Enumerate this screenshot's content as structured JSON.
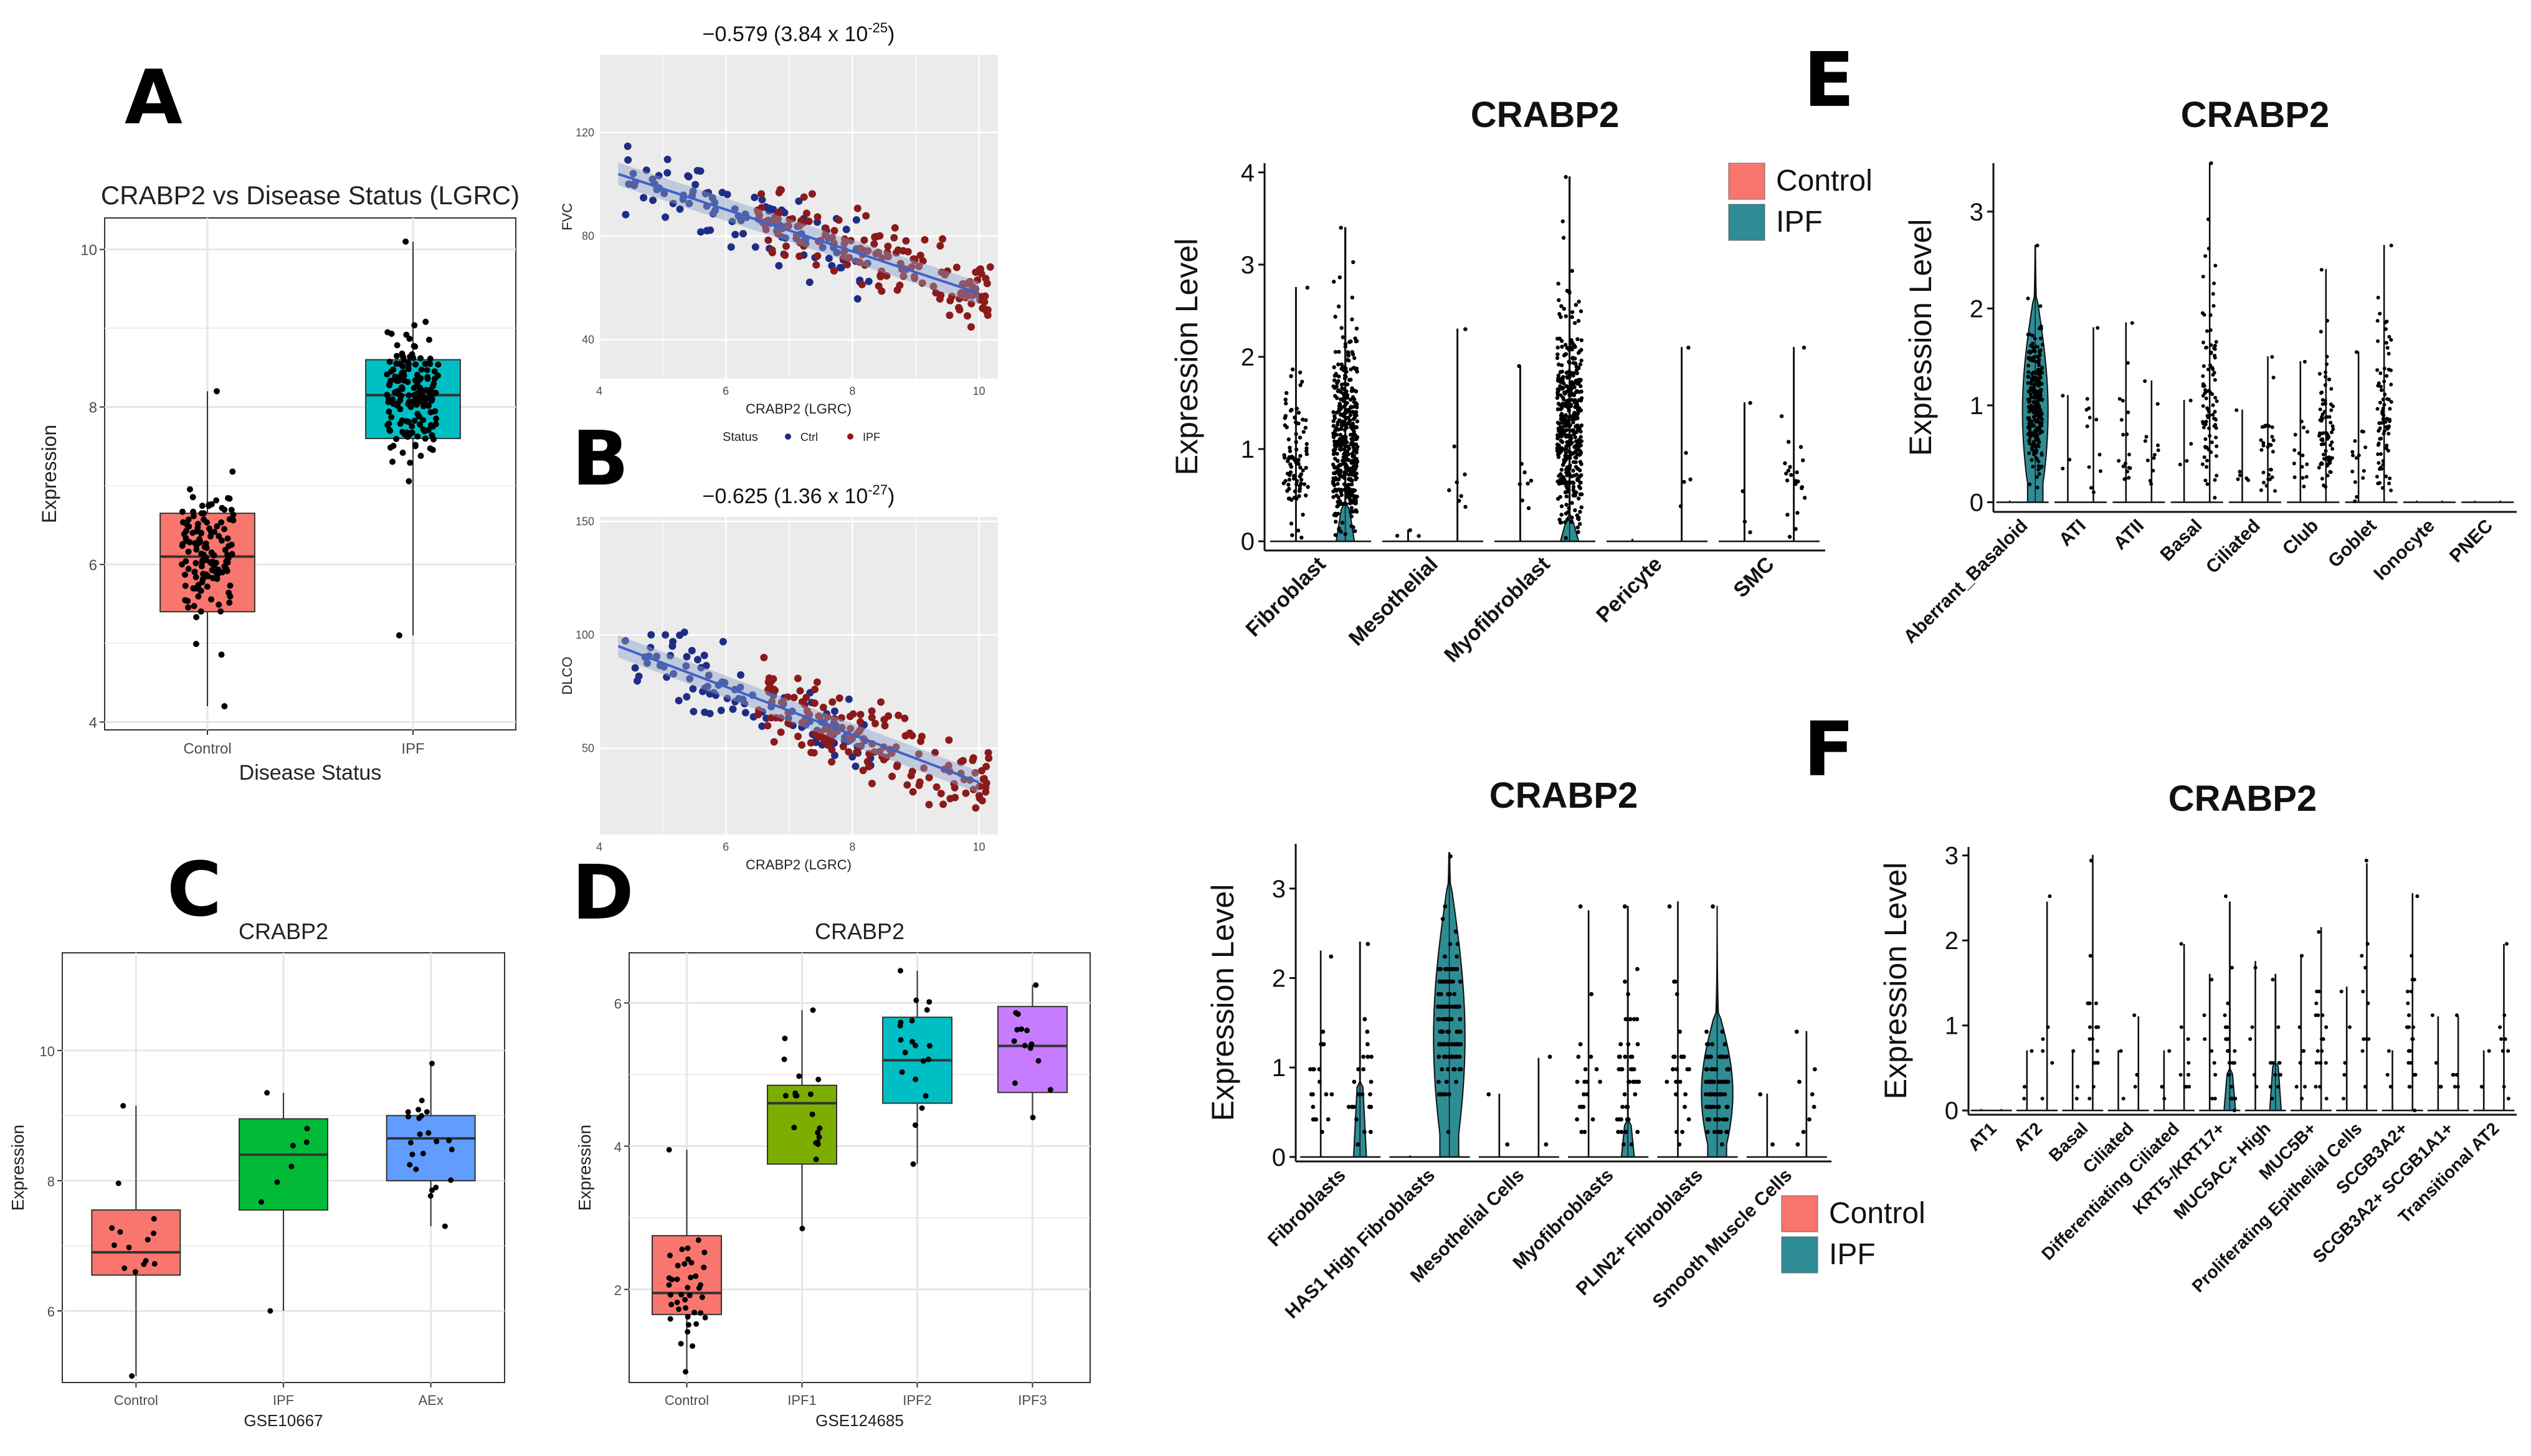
{
  "figure": {
    "panel_letters": [
      "A",
      "B",
      "C",
      "D",
      "E",
      "F"
    ]
  },
  "colors": {
    "control": "#F8766D",
    "ipf": "#00BFC4",
    "ipf_sc": "#2E8C95",
    "ctrl_point": "#1F2D86",
    "ipf_point": "#8B1A1A",
    "regression": "#3F63C8",
    "c_ipf": "#00BA38",
    "c_aex": "#619CFF",
    "d_ipf1": "#7CAE00",
    "d_ipf2": "#00BFC4",
    "d_ipf3": "#C77CFF"
  },
  "chart_data": [
    {
      "id": "A_box",
      "type": "box",
      "title": "CRABP2 vs Disease Status (LGRC)",
      "xlabel": "Disease Status",
      "ylabel": "Expression",
      "categories": [
        "Control",
        "IPF"
      ],
      "ylim": [
        3.9,
        10.4
      ],
      "yticks": [
        4,
        6,
        8,
        10
      ],
      "boxes": [
        {
          "q1": 5.4,
          "median": 6.1,
          "q3": 6.65,
          "whisker_low": 4.2,
          "whisker_high": 8.2,
          "n": 130
        },
        {
          "q1": 7.6,
          "median": 8.15,
          "q3": 8.6,
          "whisker_low": 5.1,
          "whisker_high": 10.1,
          "n": 160
        }
      ]
    },
    {
      "id": "A_scatter",
      "type": "scatter",
      "annotation": "−0.579 (3.84 x 10",
      "annotation_exp": "-25",
      "annotation_close": ")",
      "xlabel": "CRABP2 (LGRC)",
      "ylabel": "FVC",
      "xlim": [
        4,
        10.3
      ],
      "ylim": [
        25,
        150
      ],
      "xticks": [
        4,
        6,
        8,
        10
      ],
      "yticks": [
        40,
        80,
        120
      ],
      "trend": {
        "x0": 4.3,
        "y0": 104,
        "x1": 10.0,
        "y1": 58
      },
      "legend": {
        "title": "Status",
        "ctrl_label": "Ctrl",
        "ipf_label": "IPF"
      }
    },
    {
      "id": "B_scatter",
      "type": "scatter",
      "annotation": "−0.625 (1.36 x 10",
      "annotation_exp": "-27",
      "annotation_close": ")",
      "xlabel": "CRABP2 (LGRC)",
      "ylabel": "DLCO",
      "xlim": [
        4,
        10.3
      ],
      "ylim": [
        12,
        152
      ],
      "xticks": [
        4,
        6,
        8,
        10
      ],
      "yticks": [
        50,
        100,
        150
      ],
      "trend": {
        "x0": 4.3,
        "y0": 95,
        "x1": 10.0,
        "y1": 35
      }
    },
    {
      "id": "C_box",
      "type": "box",
      "title": "CRABP2",
      "xlabel": "GSE10667",
      "ylabel": "Expression",
      "categories": [
        "Control",
        "IPF",
        "AEx"
      ],
      "ylim": [
        4.9,
        11.5
      ],
      "yticks": [
        6,
        8,
        10
      ],
      "boxes": [
        {
          "q1": 6.55,
          "median": 6.9,
          "q3": 7.55,
          "whisker_low": 5.0,
          "whisker_high": 9.15,
          "n": 15
        },
        {
          "q1": 7.55,
          "median": 8.4,
          "q3": 8.95,
          "whisker_low": 6.0,
          "whisker_high": 9.35,
          "n": 8
        },
        {
          "q1": 8.0,
          "median": 8.65,
          "q3": 9.0,
          "whisker_low": 7.3,
          "whisker_high": 9.8,
          "n": 23
        }
      ]
    },
    {
      "id": "D_box",
      "type": "box",
      "title": "CRABP2",
      "xlabel": "GSE124685",
      "ylabel": "Expression",
      "categories": [
        "Control",
        "IPF1",
        "IPF2",
        "IPF3"
      ],
      "ylim": [
        0.7,
        6.7
      ],
      "yticks": [
        2,
        4,
        6
      ],
      "boxes": [
        {
          "q1": 1.65,
          "median": 1.95,
          "q3": 2.75,
          "whisker_low": 0.85,
          "whisker_high": 3.95,
          "n": 40
        },
        {
          "q1": 3.75,
          "median": 4.6,
          "q3": 4.85,
          "whisker_low": 2.85,
          "whisker_high": 5.9,
          "n": 20
        },
        {
          "q1": 4.6,
          "median": 5.2,
          "q3": 5.8,
          "whisker_low": 3.75,
          "whisker_high": 6.45,
          "n": 20
        },
        {
          "q1": 4.75,
          "median": 5.4,
          "q3": 5.95,
          "whisker_low": 4.4,
          "whisker_high": 6.25,
          "n": 14
        }
      ]
    },
    {
      "id": "E1_violin",
      "type": "violin",
      "title": "CRABP2",
      "ylabel": "Expression Level",
      "ylim": [
        -0.1,
        4.1
      ],
      "yticks": [
        0,
        1,
        2,
        3,
        4
      ],
      "categories": [
        "Fibroblast",
        "Mesothelial",
        "Myofibroblast",
        "Pericyte",
        "SMC"
      ],
      "groups": [
        {
          "control_max": 2.75,
          "ipf_max": 3.4,
          "control_n": 90,
          "ipf_n": 420,
          "ipf_blob": 0.35
        },
        {
          "control_max": 0.12,
          "ipf_max": 2.3,
          "control_n": 3,
          "ipf_n": 8,
          "ipf_blob": 0
        },
        {
          "control_max": 1.9,
          "ipf_max": 3.95,
          "control_n": 8,
          "ipf_n": 420,
          "ipf_blob": 0.2
        },
        {
          "control_max": 0.02,
          "ipf_max": 2.1,
          "control_n": 0,
          "ipf_n": 5,
          "ipf_blob": 0
        },
        {
          "control_max": 1.5,
          "ipf_max": 2.1,
          "control_n": 4,
          "ipf_n": 22,
          "ipf_blob": 0
        }
      ],
      "legend": [
        "Control",
        "IPF"
      ]
    },
    {
      "id": "E2_violin",
      "type": "violin",
      "title": "CRABP2",
      "ylabel": "Expression Level",
      "ylim": [
        -0.1,
        3.5
      ],
      "yticks": [
        0,
        1,
        2,
        3
      ],
      "categories": [
        "Aberrant_Basaloid",
        "ATI",
        "ATII",
        "Basal",
        "Ciliated",
        "Club",
        "Goblet",
        "Ionocyte",
        "PNEC"
      ],
      "groups": [
        {
          "control_max": 0,
          "ipf_max": 2.65,
          "control_n": 0,
          "ipf_n": 260,
          "ipf_blob": 2.1
        },
        {
          "control_max": 1.1,
          "ipf_max": 1.8,
          "control_n": 3,
          "ipf_n": 12,
          "ipf_blob": 0
        },
        {
          "control_max": 1.85,
          "ipf_max": 1.25,
          "control_n": 18,
          "ipf_n": 12,
          "ipf_blob": 0
        },
        {
          "control_max": 1.05,
          "ipf_max": 3.5,
          "control_n": 4,
          "ipf_n": 90,
          "ipf_blob": 0
        },
        {
          "control_max": 0.95,
          "ipf_max": 1.5,
          "control_n": 6,
          "ipf_n": 30,
          "ipf_blob": 0
        },
        {
          "control_max": 1.45,
          "ipf_max": 2.4,
          "control_n": 15,
          "ipf_n": 75,
          "ipf_blob": 0
        },
        {
          "control_max": 1.55,
          "ipf_max": 2.65,
          "control_n": 15,
          "ipf_n": 80,
          "ipf_blob": 0
        },
        {
          "control_max": 0,
          "ipf_max": 0,
          "control_n": 0,
          "ipf_n": 0,
          "ipf_blob": 0
        },
        {
          "control_max": 0,
          "ipf_max": 0,
          "control_n": 0,
          "ipf_n": 0,
          "ipf_blob": 0
        }
      ]
    },
    {
      "id": "F1_violin",
      "type": "violin",
      "title": "CRABP2",
      "ylabel": "Expression Level",
      "ylim": [
        -0.05,
        3.5
      ],
      "yticks": [
        0,
        1,
        2,
        3
      ],
      "categories": [
        "Fibroblasts",
        "HAS1 High Fibroblasts",
        "Mesothelial Cells",
        "Myofibroblasts",
        "PLIN2+ Fibroblasts",
        "Smooth Muscle Cells"
      ],
      "groups": [
        {
          "control_max": 2.3,
          "ipf_max": 2.4,
          "control_n": 20,
          "ipf_n": 25,
          "ipf_blob": 0.8
        },
        {
          "control_max": 0,
          "ipf_max": 3.4,
          "control_n": 0,
          "ipf_n": 120,
          "ipf_blob": 3.0
        },
        {
          "control_max": 0.7,
          "ipf_max": 1.1,
          "control_n": 2,
          "ipf_n": 2,
          "ipf_blob": 0
        },
        {
          "control_max": 2.75,
          "ipf_max": 2.8,
          "control_n": 20,
          "ipf_n": 45,
          "ipf_blob": 0.4
        },
        {
          "control_max": 2.85,
          "ipf_max": 2.8,
          "control_n": 25,
          "ipf_n": 120,
          "ipf_blob": 1.6
        },
        {
          "control_max": 0.7,
          "ipf_max": 1.4,
          "control_n": 2,
          "ipf_n": 8,
          "ipf_blob": 0
        }
      ],
      "legend": [
        "Control",
        "IPF"
      ]
    },
    {
      "id": "F2_violin",
      "type": "violin",
      "title": "CRABP2",
      "ylabel": "Expression Level",
      "ylim": [
        -0.05,
        3.1
      ],
      "yticks": [
        0,
        1,
        2,
        3
      ],
      "categories": [
        "AT1",
        "AT2",
        "Basal",
        "Ciliated",
        "Differentiating Ciliated",
        "KRT5-/KRT17+",
        "MUC5AC+ High",
        "MUC5B+",
        "Proliferating Epithelial Cells",
        "SCGB3A2+",
        "SCGB3A2+ SCGB1A1+",
        "Transitional AT2"
      ],
      "groups": [
        {
          "control_max": 0,
          "ipf_max": 0,
          "control_n": 0,
          "ipf_n": 0,
          "ipf_blob": 0
        },
        {
          "control_max": 0.7,
          "ipf_max": 2.45,
          "control_n": 3,
          "ipf_n": 6,
          "ipf_blob": 0
        },
        {
          "control_max": 0.7,
          "ipf_max": 3.0,
          "control_n": 3,
          "ipf_n": 20,
          "ipf_blob": 0
        },
        {
          "control_max": 0.7,
          "ipf_max": 1.1,
          "control_n": 2,
          "ipf_n": 3,
          "ipf_blob": 0
        },
        {
          "control_max": 0.7,
          "ipf_max": 1.95,
          "control_n": 3,
          "ipf_n": 10,
          "ipf_blob": 0
        },
        {
          "control_max": 1.6,
          "ipf_max": 2.45,
          "control_n": 8,
          "ipf_n": 25,
          "ipf_blob": 0.45
        },
        {
          "control_max": 1.75,
          "ipf_max": 1.6,
          "control_n": 5,
          "ipf_n": 12,
          "ipf_blob": 0.55
        },
        {
          "control_max": 1.8,
          "ipf_max": 2.15,
          "control_n": 8,
          "ipf_n": 20,
          "ipf_blob": 0
        },
        {
          "control_max": 1.45,
          "ipf_max": 2.9,
          "control_n": 5,
          "ipf_n": 12,
          "ipf_blob": 0
        },
        {
          "control_max": 0.7,
          "ipf_max": 2.55,
          "control_n": 3,
          "ipf_n": 25,
          "ipf_blob": 0
        },
        {
          "control_max": 1.1,
          "ipf_max": 1.1,
          "control_n": 4,
          "ipf_n": 6,
          "ipf_blob": 0
        },
        {
          "control_max": 0.7,
          "ipf_max": 1.95,
          "control_n": 2,
          "ipf_n": 10,
          "ipf_blob": 0
        }
      ]
    }
  ]
}
